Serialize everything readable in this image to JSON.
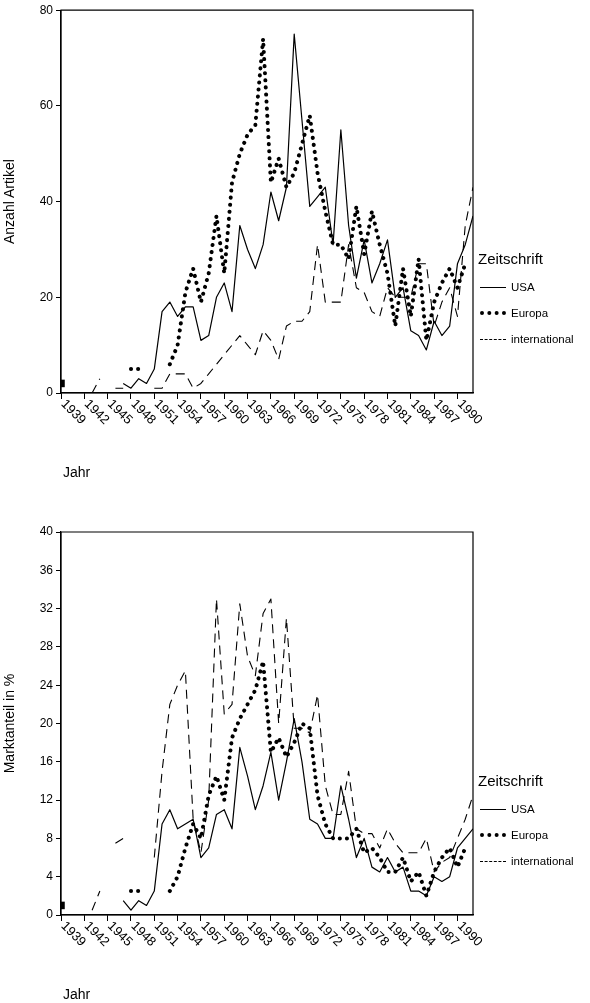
{
  "chart_data": [
    {
      "type": "line",
      "ylabel": "Anzahl Artikel",
      "xlabel": "Jahr",
      "legend_title": "Zeitschrift",
      "legend": "right",
      "xlim": [
        1939,
        1992
      ],
      "ylim": [
        0,
        80
      ],
      "yticks": [
        0,
        20,
        40,
        60,
        80
      ],
      "xticks": [
        1939,
        1942,
        1945,
        1948,
        1951,
        1954,
        1957,
        1960,
        1963,
        1966,
        1969,
        1972,
        1975,
        1978,
        1981,
        1984,
        1987,
        1990
      ],
      "x": [
        1939,
        1940,
        1941,
        1942,
        1943,
        1944,
        1945,
        1946,
        1947,
        1948,
        1949,
        1950,
        1951,
        1952,
        1953,
        1954,
        1955,
        1956,
        1957,
        1958,
        1959,
        1960,
        1961,
        1962,
        1963,
        1964,
        1965,
        1966,
        1967,
        1968,
        1969,
        1970,
        1971,
        1972,
        1973,
        1974,
        1975,
        1976,
        1977,
        1978,
        1979,
        1980,
        1981,
        1982,
        1983,
        1984,
        1985,
        1986,
        1987,
        1988,
        1989,
        1990,
        1991,
        1992
      ],
      "series": [
        {
          "name": "USA",
          "color": "#000000",
          "line_style": "solid",
          "values": [
            null,
            null,
            null,
            null,
            null,
            null,
            null,
            null,
            2,
            1,
            3,
            2,
            5,
            17,
            19,
            16,
            18,
            18,
            11,
            12,
            20,
            23,
            17,
            35,
            30,
            26,
            31,
            42,
            36,
            43,
            75,
            57,
            39,
            41,
            43,
            31,
            55,
            35,
            24,
            32,
            23,
            27,
            32,
            20,
            22,
            13,
            12,
            9,
            15,
            12,
            14,
            27,
            31,
            37
          ]
        },
        {
          "name": "Europa",
          "color": "#000000",
          "line_style": "dotted",
          "values": [
            2,
            null,
            null,
            null,
            null,
            null,
            null,
            null,
            null,
            5,
            5,
            null,
            null,
            null,
            6,
            10,
            21,
            26,
            19,
            25,
            37,
            25,
            44,
            50,
            54,
            56,
            74,
            44,
            49,
            43,
            46,
            52,
            58,
            46,
            38,
            31,
            31,
            28,
            39,
            29,
            38,
            31,
            25,
            14,
            26,
            16,
            28,
            11,
            19,
            23,
            26,
            22,
            27,
            null
          ]
        },
        {
          "name": "international",
          "color": "#000000",
          "line_style": "dashed",
          "values": [
            null,
            null,
            null,
            null,
            0,
            3,
            null,
            1,
            1,
            null,
            null,
            null,
            1,
            1,
            4,
            4,
            4,
            1,
            2,
            4,
            6,
            8,
            10,
            12,
            10,
            8,
            13,
            11,
            7,
            14,
            15,
            15,
            17,
            31,
            19,
            19,
            19,
            31,
            22,
            21,
            17,
            16,
            22,
            20,
            20,
            20,
            27,
            27,
            14,
            19,
            22,
            16,
            35,
            43
          ]
        }
      ]
    },
    {
      "type": "line",
      "ylabel": "Marktanteil in %",
      "xlabel": "Jahr",
      "legend_title": "Zeitschrift",
      "legend": "right",
      "xlim": [
        1939,
        1992
      ],
      "ylim": [
        0,
        40
      ],
      "yticks": [
        0,
        4,
        8,
        12,
        16,
        20,
        24,
        28,
        32,
        36,
        40
      ],
      "xticks": [
        1939,
        1942,
        1945,
        1948,
        1951,
        1954,
        1957,
        1960,
        1963,
        1966,
        1969,
        1972,
        1975,
        1978,
        1981,
        1984,
        1987,
        1990
      ],
      "x": [
        1939,
        1940,
        1941,
        1942,
        1943,
        1944,
        1945,
        1946,
        1947,
        1948,
        1949,
        1950,
        1951,
        1952,
        1953,
        1954,
        1955,
        1956,
        1957,
        1958,
        1959,
        1960,
        1961,
        1962,
        1963,
        1964,
        1965,
        1966,
        1967,
        1968,
        1969,
        1970,
        1971,
        1972,
        1973,
        1974,
        1975,
        1976,
        1977,
        1978,
        1979,
        1980,
        1981,
        1982,
        1983,
        1984,
        1985,
        1986,
        1987,
        1988,
        1989,
        1990,
        1991,
        1992
      ],
      "series": [
        {
          "name": "USA",
          "color": "#000000",
          "line_style": "solid",
          "values": [
            null,
            null,
            null,
            null,
            null,
            null,
            null,
            null,
            1.5,
            0.5,
            1.5,
            1,
            2.5,
            9.5,
            11,
            9,
            9.5,
            10,
            6,
            7,
            10.5,
            11,
            9,
            17.5,
            14.5,
            11,
            13.5,
            17,
            12,
            16,
            20.5,
            16,
            10,
            9.5,
            8,
            8,
            13.5,
            10,
            6,
            8,
            5,
            4.5,
            6,
            4.5,
            5,
            2.5,
            2.5,
            2,
            4,
            3.5,
            4,
            7,
            8,
            9
          ]
        },
        {
          "name": "Europa",
          "color": "#000000",
          "line_style": "dotted",
          "values": [
            1,
            null,
            null,
            null,
            null,
            null,
            null,
            null,
            null,
            2.5,
            2.5,
            null,
            null,
            null,
            2.5,
            4,
            7,
            9.5,
            8,
            12.5,
            14.5,
            12,
            18.5,
            20.5,
            22,
            23.5,
            26.5,
            17,
            18.5,
            16.5,
            18,
            20,
            19.5,
            12.5,
            9.5,
            8,
            8,
            8,
            9,
            6.5,
            7,
            6,
            4.5,
            4.5,
            6,
            3.5,
            4.5,
            2,
            4.5,
            6,
            7,
            5,
            7,
            null
          ]
        },
        {
          "name": "international",
          "color": "#000000",
          "line_style": "dashed",
          "values": [
            null,
            null,
            null,
            null,
            0.5,
            2.5,
            null,
            7.5,
            8,
            null,
            null,
            null,
            6,
            15,
            22,
            24,
            25.5,
            10,
            6.5,
            12,
            33,
            21,
            22,
            32.5,
            27,
            25,
            31.5,
            33,
            20,
            31,
            19.5,
            19.5,
            19,
            23,
            13.5,
            10.5,
            10.5,
            15,
            9,
            8.5,
            8.5,
            7,
            9,
            7.5,
            6.5,
            6.5,
            6.5,
            8,
            4.5,
            5.5,
            6,
            8,
            10,
            12.5
          ]
        }
      ]
    }
  ]
}
